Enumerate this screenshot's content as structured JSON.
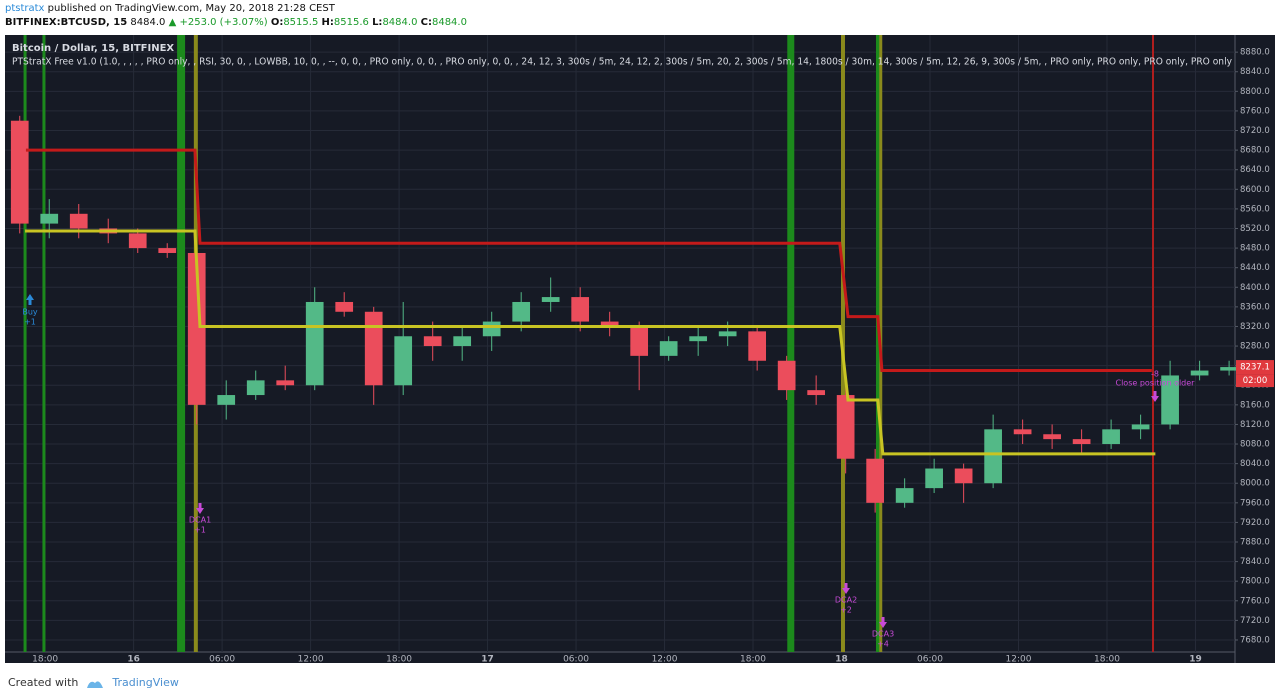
{
  "header": {
    "user": "ptstratx",
    "published": "published on TradingView.com, May 20, 2018 21:28 CEST",
    "symbol": "BITFINEX:BTCUSD, 15",
    "price": "8484.0",
    "change": "▲ +253.0 (+3.07%)",
    "ohlc": [
      {
        "key": "O:",
        "value": "8515.5"
      },
      {
        "key": "H:",
        "value": "8515.6"
      },
      {
        "key": "L:",
        "value": "8484.0"
      },
      {
        "key": "C:",
        "value": "8484.0"
      }
    ]
  },
  "footer": {
    "text": "Created with",
    "brand": "TradingView"
  },
  "chart_data": {
    "type": "candlestick",
    "title": "Bitcoin / Dollar, 15, BITFINEX",
    "subtitle": "PTStratX Free v1.0 (1.0, , , , , PRO only, , RSI, 30, 0, , LOWBB, 10, 0, , --, 0, 0, , PRO only, 0, 0, , PRO only, 0, 0, , 24, 12, 3,   300s / 5m, 24, 12, 2,   300s / 5m, 20, 2,   300s / 5m, 14,  1800s / 30m, 14,   300s / 5m, 12, 26, 9,   300s / 5m, , PRO only, PRO only, PRO only, PRO only",
    "up_color": "#53b987",
    "down_color": "#eb4d5c",
    "open": [
      8740,
      8530,
      8550,
      8520,
      8510,
      8480,
      8470,
      8160,
      8180,
      8210,
      8200,
      8370,
      8350,
      8200,
      8300,
      8280,
      8300,
      8330,
      8370,
      8380,
      8330,
      8320,
      8260,
      8290,
      8300,
      8310,
      8250,
      8190,
      8180,
      8050,
      7960,
      7990,
      8030,
      8000,
      8110,
      8100,
      8090,
      8080,
      8110,
      8120,
      8220,
      8230
    ],
    "high": [
      8750,
      8580,
      8570,
      8540,
      8520,
      8490,
      8480,
      8210,
      8230,
      8240,
      8400,
      8390,
      8360,
      8370,
      8330,
      8320,
      8350,
      8390,
      8420,
      8400,
      8350,
      8330,
      8300,
      8320,
      8330,
      8320,
      8260,
      8220,
      8200,
      8070,
      8010,
      8050,
      8040,
      8140,
      8130,
      8120,
      8110,
      8130,
      8140,
      8250,
      8250,
      8250
    ],
    "low": [
      8510,
      8500,
      8500,
      8490,
      8470,
      8460,
      8120,
      8130,
      8170,
      8190,
      8190,
      8340,
      8160,
      8180,
      8250,
      8250,
      8270,
      8310,
      8350,
      8310,
      8300,
      8190,
      8250,
      8260,
      8280,
      8230,
      8170,
      8160,
      8020,
      7940,
      7950,
      7980,
      7960,
      7990,
      8080,
      8070,
      8060,
      8070,
      8090,
      8110,
      8210,
      8220
    ],
    "close": [
      8530,
      8550,
      8520,
      8510,
      8480,
      8470,
      8160,
      8180,
      8210,
      8200,
      8370,
      8350,
      8200,
      8300,
      8280,
      8300,
      8330,
      8370,
      8380,
      8330,
      8320,
      8260,
      8290,
      8300,
      8310,
      8250,
      8190,
      8180,
      8050,
      7960,
      7990,
      8030,
      8000,
      8110,
      8100,
      8090,
      8080,
      8110,
      8120,
      8220,
      8230,
      8237.1
    ],
    "last_price_label": "8237.1",
    "countdown": "02:00",
    "xlim": [
      0,
      41.7
    ],
    "ylim": [
      7633,
      8915
    ],
    "xticks": [
      {
        "value": 1.36,
        "label": "18:00"
      },
      {
        "value": 4.36,
        "label": "16"
      },
      {
        "value": 7.36,
        "label": "06:00"
      },
      {
        "value": 10.36,
        "label": "12:00"
      },
      {
        "value": 13.36,
        "label": "18:00"
      },
      {
        "value": 16.36,
        "label": "17"
      },
      {
        "value": 19.36,
        "label": "06:00"
      },
      {
        "value": 22.36,
        "label": "12:00"
      },
      {
        "value": 25.36,
        "label": "18:00"
      },
      {
        "value": 28.36,
        "label": "18"
      },
      {
        "value": 31.36,
        "label": "06:00"
      },
      {
        "value": 34.36,
        "label": "12:00"
      },
      {
        "value": 37.36,
        "label": "18:00"
      },
      {
        "value": 40.36,
        "label": "19"
      }
    ],
    "yticks": [
      {
        "value": 7680,
        "label": "7680.0"
      },
      {
        "value": 7720,
        "label": "7720.0"
      },
      {
        "value": 7760,
        "label": "7760.0"
      },
      {
        "value": 7800,
        "label": "7800.0"
      },
      {
        "value": 7840,
        "label": "7840.0"
      },
      {
        "value": 7880,
        "label": "7880.0"
      },
      {
        "value": 7920,
        "label": "7920.0"
      },
      {
        "value": 7960,
        "label": "7960.0"
      },
      {
        "value": 8000,
        "label": "8000.0"
      },
      {
        "value": 8040,
        "label": "8040.0"
      },
      {
        "value": 8080,
        "label": "8080.0"
      },
      {
        "value": 8120,
        "label": "8120.0"
      },
      {
        "value": 8160,
        "label": "8160.0"
      },
      {
        "value": 8200,
        "label": "8200.0"
      },
      {
        "value": 8240,
        "label": "8240.0"
      },
      {
        "value": 8280,
        "label": "8280.0"
      },
      {
        "value": 8320,
        "label": "8320.0"
      },
      {
        "value": 8360,
        "label": "8360.0"
      },
      {
        "value": 8400,
        "label": "8400.0"
      },
      {
        "value": 8440,
        "label": "8440.0"
      },
      {
        "value": 8480,
        "label": "8480.0"
      },
      {
        "value": 8520,
        "label": "8520.0"
      },
      {
        "value": 8560,
        "label": "8560.0"
      },
      {
        "value": 8600,
        "label": "8600.0"
      },
      {
        "value": 8640,
        "label": "8640.0"
      },
      {
        "value": 8680,
        "label": "8680.0"
      },
      {
        "value": 8720,
        "label": "8720.0"
      },
      {
        "value": 8760,
        "label": "8760.0"
      },
      {
        "value": 8800,
        "label": "8800.0"
      },
      {
        "value": 8840,
        "label": "8840.0"
      },
      {
        "value": 8880,
        "label": "8880.0"
      }
    ],
    "grid": true,
    "overlays": [
      {
        "color": "#c41a1a",
        "x": [
          0.71,
          6.44,
          6.61,
          28.3,
          28.58,
          29.59,
          29.73,
          38.88
        ],
        "values": [
          8680,
          8680,
          8490,
          8490,
          8340,
          8340,
          8230,
          8230
        ]
      },
      {
        "color": "#c8c423",
        "x": [
          0.68,
          6.44,
          6.61,
          28.3,
          28.58,
          29.59,
          29.76,
          39.0
        ],
        "values": [
          8515,
          8515,
          8320,
          8320,
          8170,
          8170,
          8060,
          8060
        ]
      }
    ],
    "vlines": [
      {
        "x": 0.68,
        "color": "#1c8a1c"
      },
      {
        "x": 1.32,
        "color": "#1c8a1c"
      },
      {
        "x": 5.97,
        "color": "#1c8a1c"
      },
      {
        "x": 6.47,
        "color": "#8a8a1c"
      },
      {
        "x": 26.64,
        "color": "#1c8a1c"
      },
      {
        "x": 28.41,
        "color": "#8a8a1c"
      },
      {
        "x": 29.63,
        "color": "#1c8a1c"
      },
      {
        "x": 29.69,
        "color": "#8a8a1c"
      },
      {
        "x": 38.92,
        "color": "#b01e1e"
      }
    ],
    "annotations": [
      {
        "text": "Buy",
        "detail": "+1",
        "color": "#2a8ad8"
      },
      {
        "text": "DCA1",
        "detail": "+1",
        "color": "#c84ad8"
      },
      {
        "text": "DCA2",
        "detail": "+2",
        "color": "#c84ad8"
      },
      {
        "text": "DCA3",
        "detail": "+4",
        "color": "#c84ad8"
      },
      {
        "text": "Close position older",
        "detail": "-8",
        "color": "#c84ad8"
      }
    ]
  }
}
